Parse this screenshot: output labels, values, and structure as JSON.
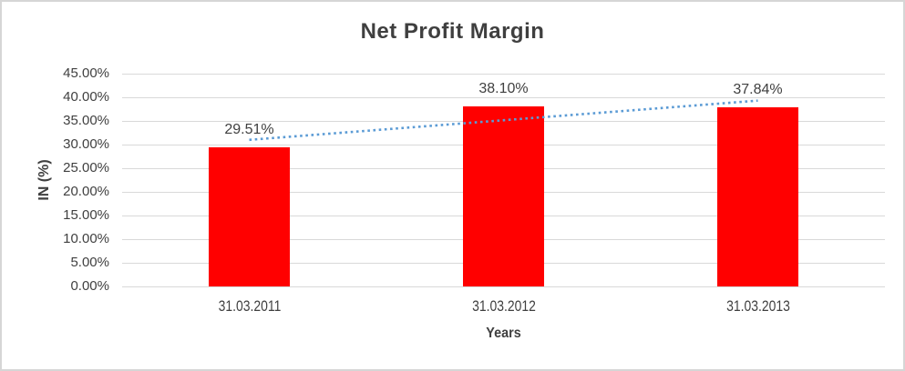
{
  "chart_data": {
    "type": "bar",
    "title": "Net Profit Margin",
    "xlabel": "Years",
    "ylabel": "IN (%)",
    "categories": [
      "31.03.2011",
      "31.03.2012",
      "31.03.2013"
    ],
    "values": [
      29.51,
      38.1,
      37.84
    ],
    "data_labels": [
      "29.51%",
      "38.10%",
      "37.84%"
    ],
    "ylim": [
      0,
      45
    ],
    "ytick_step": 5,
    "ytick_labels": [
      "0.00%",
      "5.00%",
      "10.00%",
      "15.00%",
      "20.00%",
      "25.00%",
      "30.00%",
      "35.00%",
      "40.00%",
      "45.00%"
    ],
    "grid": true,
    "legend": "none",
    "bar_color": "#ff0000",
    "trendline": {
      "type": "linear",
      "style": "dotted",
      "color": "#5b9bd5",
      "start_value": 31.0,
      "end_value": 39.3
    }
  },
  "colors": {
    "bar": "#ff0000",
    "trendline": "#5b9bd5",
    "gridline": "#d9d9d9",
    "text": "#404040",
    "title_text": "#3f3f3f",
    "frame_border": "#d6d6d6"
  }
}
